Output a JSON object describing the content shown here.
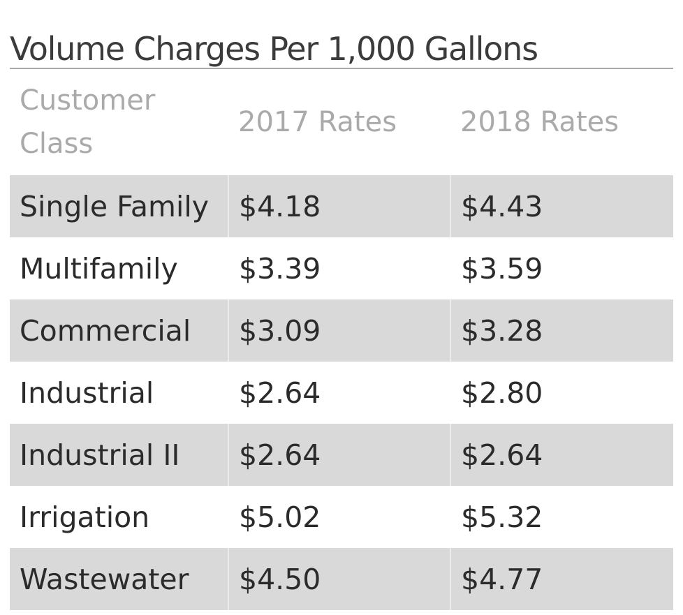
{
  "title": "Volume Charges Per 1,000 Gallons",
  "table": {
    "headers": [
      "Customer Class",
      "2017 Rates",
      "2018 Rates"
    ],
    "rows": [
      [
        "Single Family",
        "$4.18",
        "$4.43"
      ],
      [
        "Multifamily",
        "$3.39",
        "$3.59"
      ],
      [
        "Commercial",
        "$3.09",
        "$3.28"
      ],
      [
        "Industrial",
        "$2.64",
        "$2.80"
      ],
      [
        "Industrial II",
        "$2.64",
        "$2.64"
      ],
      [
        "Irrigation",
        "$5.02",
        "$5.32"
      ],
      [
        "Wastewater",
        "$4.50",
        "$4.77"
      ]
    ]
  },
  "colors": {
    "title_text": "#3b3b3b",
    "header_text": "#aaaaaa",
    "body_text": "#2b2b2b",
    "shaded_row": "#d9d9d9",
    "rule": "#a9a9a9"
  }
}
